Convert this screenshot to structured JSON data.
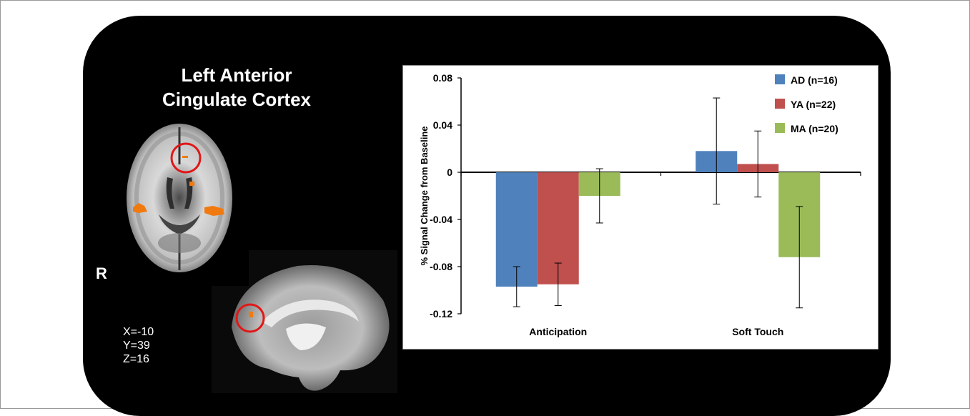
{
  "figure": {
    "title_line1": "Left Anterior",
    "title_line2": "Cingulate Cortex",
    "orientation_label": "R",
    "coordinates": [
      "X=-10",
      "Y=39",
      "Z=16"
    ]
  },
  "colors": {
    "panel_bg": "#000000",
    "activation": "#f07a10",
    "roi_circle": "#e01818",
    "AD": "#4f81bd",
    "YA": "#c0504d",
    "MA": "#9bbb59"
  },
  "chart_data": {
    "type": "bar",
    "title": "",
    "xlabel": "",
    "ylabel": "% Signal Change from Baseline",
    "ylim": [
      -0.12,
      0.08
    ],
    "yticks": [
      0.08,
      0.04,
      0,
      -0.04,
      -0.08,
      -0.12
    ],
    "ytick_labels": [
      "0.08",
      "0.04",
      "0",
      "-0.04",
      "-0.08",
      "-0.12"
    ],
    "categories": [
      "Anticipation",
      "Soft Touch"
    ],
    "series": [
      {
        "name": "AD (n=16)",
        "color": "#4f81bd",
        "values": [
          -0.097,
          0.018
        ],
        "error": [
          0.017,
          0.045
        ]
      },
      {
        "name": "YA (n=22)",
        "color": "#c0504d",
        "values": [
          -0.095,
          0.007
        ],
        "error": [
          0.018,
          0.028
        ]
      },
      {
        "name": "MA (n=20)",
        "color": "#9bbb59",
        "values": [
          -0.02,
          -0.072
        ],
        "error": [
          0.023,
          0.043
        ]
      }
    ],
    "legend_position": "top-right",
    "grid": false
  }
}
